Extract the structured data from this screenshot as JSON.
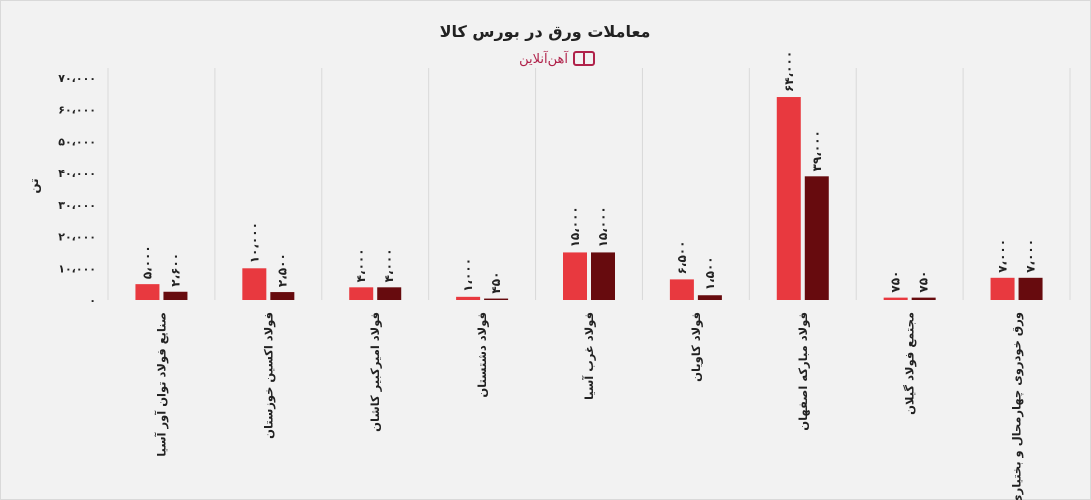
{
  "chart_data": {
    "type": "bar",
    "title": "معاملات ورق در بورس کالا",
    "subtitle": "آهن‌آنلاین",
    "ylabel": "تن",
    "xlabel": "",
    "ylim": [
      0,
      70000
    ],
    "ytick_labels": [
      "۰",
      "۱۰،۰۰۰",
      "۲۰،۰۰۰",
      "۳۰،۰۰۰",
      "۴۰،۰۰۰",
      "۵۰،۰۰۰",
      "۶۰،۰۰۰",
      "۷۰،۰۰۰"
    ],
    "ytick_values": [
      0,
      10000,
      20000,
      30000,
      40000,
      50000,
      60000,
      70000
    ],
    "grid": "vertical category separators",
    "legend": "none",
    "categories": [
      "صنایع فولاد توان آور آسیا",
      "فولاد اکسین خوزستان",
      "فولاد امیرکبیر کاشان",
      "فولاد دشتستان",
      "فولاد غرب آسیا",
      "فولاد کاویان",
      "فولاد مبارکه اصفهان",
      "مجتمع فولاد گیلان",
      "ورق خودروی چهارمحال و بختیاری"
    ],
    "series": [
      {
        "color": "#e8393f",
        "values": [
          5000,
          10000,
          4000,
          1000,
          15000,
          6500,
          64000,
          750,
          7000
        ],
        "labels": [
          "۵،۰۰۰",
          "۱۰،۰۰۰",
          "۴،۰۰۰",
          "۱،۰۰۰",
          "۱۵،۰۰۰",
          "۶،۵۰۰",
          "۶۴،۰۰۰",
          "۷۵۰",
          "۷،۰۰۰"
        ]
      },
      {
        "color": "#670b0e",
        "values": [
          2600,
          2500,
          4000,
          450,
          15000,
          1500,
          39000,
          750,
          7000
        ],
        "labels": [
          "۲،۶۰۰",
          "۲،۵۰۰",
          "۴،۰۰۰",
          "۴۵۰",
          "۱۵،۰۰۰",
          "۱،۵۰۰",
          "۳۹،۰۰۰",
          "۷۵۰",
          "۷،۰۰۰"
        ]
      }
    ],
    "colors": {
      "background": "#f2f2f2",
      "logo": "#b0224a"
    }
  }
}
